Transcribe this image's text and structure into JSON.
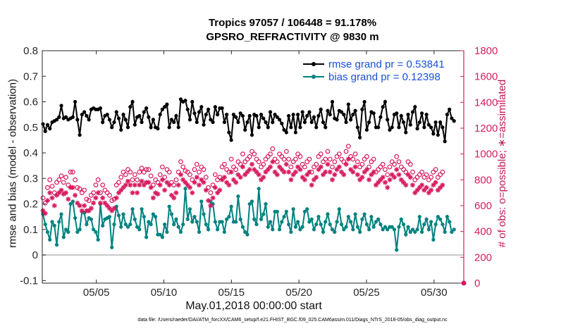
{
  "header": {
    "title_line1": "Tropics 97057 / 106448 = 91.178%",
    "title_line2": "GPSRO_REFRACTIVITY @ 9830 m"
  },
  "axes": {
    "xlabel": "May.01,2018 00:00:00 start",
    "ylabel_left": "rmse and bias (model - observation)",
    "ylabel_right": "# of obs: o=possible; ∗=assimilated"
  },
  "footnote": "data file: /Users/raeder/DAI/ATM_forcXX/CAM6_setup/f.e21.FHIST_BGC.f09_025.CAM6assim.011/Diags_NTrS_2018-05/obs_diag_output.nc",
  "colors": {
    "rmse": "#000000",
    "bias": "#00827f",
    "obs": "#d81b60",
    "legend_text": "#1a4fd6",
    "zero_line": "#b0b0b0"
  },
  "chart_data": {
    "type": "line",
    "title": "Tropics 97057 / 106448 = 91.178%",
    "subtitle": "GPSRO_REFRACTIVITY @ 9830 m",
    "xlabel": "May.01,2018 00:00:00 start",
    "ylabel": "rmse and bias (model - observation)",
    "y2label": "# of obs: o=possible; ∗=assimilated",
    "xlim": [
      1,
      32.2
    ],
    "ylim": [
      -0.11,
      0.8
    ],
    "y2lim": [
      0,
      1800
    ],
    "x_ticks": [
      5,
      10,
      15,
      20,
      25,
      30
    ],
    "x_tick_labels": [
      "05/05",
      "05/10",
      "05/15",
      "05/20",
      "05/25",
      "05/30"
    ],
    "y_ticks": [
      -0.1,
      0,
      0.1,
      0.2,
      0.3,
      0.4,
      0.5,
      0.6,
      0.7,
      0.8
    ],
    "y_tick_labels": [
      "-0.1",
      "0",
      "0.1",
      "0.2",
      "0.3",
      "0.4",
      "0.5",
      "0.6",
      "0.7",
      "0.8"
    ],
    "y2_ticks": [
      0,
      200,
      400,
      600,
      800,
      1000,
      1200,
      1400,
      1600,
      1800
    ],
    "y2_tick_labels": [
      "0",
      "200",
      "400",
      "600",
      "800",
      "1000",
      "1200",
      "1400",
      "1600",
      "1800"
    ],
    "legend_position": "top-right",
    "grid": false,
    "series": [
      {
        "name": "rmse grand pr = 0.53841",
        "axis": "left",
        "style": "line-filled-circle",
        "values": [
          0.513,
          0.485,
          0.51,
          0.495,
          0.52,
          0.525,
          0.53,
          0.54,
          0.585,
          0.535,
          0.54,
          0.53,
          0.535,
          0.54,
          0.6,
          0.53,
          0.47,
          0.55,
          0.56,
          0.545,
          0.53,
          0.57,
          0.575,
          0.57,
          0.57,
          0.575,
          0.52,
          0.545,
          0.55,
          0.53,
          0.5,
          0.52,
          0.56,
          0.535,
          0.49,
          0.55,
          0.53,
          0.5,
          0.58,
          0.6,
          0.51,
          0.54,
          0.545,
          0.52,
          0.56,
          0.575,
          0.54,
          0.5,
          0.53,
          0.5,
          0.495,
          0.55,
          0.57,
          0.58,
          0.59,
          0.5,
          0.53,
          0.52,
          0.545,
          0.5,
          0.61,
          0.6,
          0.605,
          0.57,
          0.53,
          0.6,
          0.555,
          0.52,
          0.56,
          0.58,
          0.51,
          0.55,
          0.57,
          0.53,
          0.52,
          0.58,
          0.55,
          0.575,
          0.575,
          0.52,
          0.55,
          0.48,
          0.45,
          0.55,
          0.54,
          0.52,
          0.555,
          0.545,
          0.49,
          0.52,
          0.545,
          0.47,
          0.55,
          0.545,
          0.5,
          0.55,
          0.535,
          0.52,
          0.5,
          0.56,
          0.52,
          0.55,
          0.54,
          0.53,
          0.515,
          0.49,
          0.48,
          0.545,
          0.5,
          0.55,
          0.48,
          0.55,
          0.5,
          0.56,
          0.52,
          0.545,
          0.56,
          0.52,
          0.54,
          0.5,
          0.545,
          0.57,
          0.52,
          0.5,
          0.565,
          0.55,
          0.6,
          0.535,
          0.53,
          0.565,
          0.56,
          0.55,
          0.52,
          0.59,
          0.53,
          0.55,
          0.565,
          0.5,
          0.46,
          0.57,
          0.6,
          0.49,
          0.52,
          0.56,
          0.555,
          0.5,
          0.5,
          0.54,
          0.58,
          0.6,
          0.53,
          0.49,
          0.5,
          0.55,
          0.555,
          0.5,
          0.545,
          0.52,
          0.48,
          0.55,
          0.51,
          0.56,
          0.58,
          0.495,
          0.52,
          0.555,
          0.5,
          0.55,
          0.51,
          0.5,
          0.475,
          0.52,
          0.47,
          0.52,
          0.5,
          0.445,
          0.55,
          0.57,
          0.535,
          0.525
        ]
      },
      {
        "name": "bias grand pr = 0.12398",
        "axis": "left",
        "style": "line-filled-circle",
        "values": [
          0.16,
          0.12,
          0.09,
          0.06,
          0.13,
          0.115,
          0.04,
          0.13,
          0.16,
          0.07,
          0.1,
          0.09,
          0.2,
          0.21,
          0.145,
          0.09,
          0.1,
          0.17,
          0.165,
          0.12,
          0.145,
          0.14,
          0.1,
          0.09,
          0.06,
          0.2,
          0.115,
          0.14,
          0.145,
          0.15,
          0.03,
          0.12,
          0.19,
          0.155,
          0.11,
          0.16,
          0.12,
          0.11,
          0.12,
          0.18,
          0.14,
          0.11,
          0.1,
          0.18,
          0.15,
          0.07,
          0.13,
          0.12,
          0.16,
          0.15,
          0.08,
          0.08,
          0.07,
          0.12,
          0.09,
          0.19,
          0.16,
          0.12,
          0.14,
          0.11,
          0.09,
          0.12,
          0.26,
          0.14,
          0.18,
          0.13,
          0.15,
          0.13,
          0.09,
          0.21,
          0.16,
          0.12,
          0.1,
          0.21,
          0.2,
          0.13,
          0.1,
          0.13,
          0.13,
          0.09,
          0.14,
          0.15,
          0.19,
          0.13,
          0.13,
          0.23,
          0.14,
          0.11,
          0.09,
          0.08,
          0.2,
          0.21,
          0.14,
          0.12,
          0.26,
          0.14,
          0.16,
          0.2,
          0.11,
          0.13,
          0.1,
          0.17,
          0.17,
          0.1,
          0.13,
          0.15,
          0.17,
          0.12,
          0.09,
          0.18,
          0.11,
          0.13,
          0.1,
          0.11,
          0.17,
          0.18,
          0.13,
          0.14,
          0.1,
          0.12,
          0.15,
          0.12,
          0.09,
          0.13,
          0.16,
          0.12,
          0.1,
          0.09,
          0.13,
          0.18,
          0.12,
          0.1,
          0.11,
          0.15,
          0.13,
          0.1,
          0.16,
          0.11,
          0.09,
          0.14,
          0.16,
          0.12,
          0.1,
          0.15,
          0.11,
          0.13,
          0.14,
          0.12,
          0.1,
          0.11,
          0.1,
          0.11,
          0.11,
          0.1,
          0.02,
          0.11,
          0.14,
          0.12,
          0.08,
          0.11,
          0.09,
          0.1,
          0.09,
          0.1,
          0.15,
          0.09,
          0.12,
          0.14,
          0.1,
          0.13,
          0.06,
          0.12,
          0.15,
          0.14,
          0.12,
          0.09,
          0.15,
          0.13,
          0.09,
          0.1
        ]
      },
      {
        "name": "possible",
        "axis": "right",
        "style": "open-circle",
        "values": [
          660,
          620,
          740,
          800,
          750,
          700,
          780,
          800,
          830,
          780,
          820,
          760,
          860,
          860,
          800,
          740,
          730,
          700,
          720,
          650,
          640,
          680,
          700,
          760,
          800,
          700,
          760,
          720,
          700,
          680,
          640,
          650,
          760,
          780,
          820,
          860,
          840,
          880,
          860,
          800,
          840,
          800,
          860,
          890,
          860,
          880,
          880,
          830,
          760,
          800,
          780,
          840,
          900,
          820,
          880,
          860,
          780,
          760,
          800,
          860,
          940,
          900,
          870,
          860,
          840,
          800,
          880,
          920,
          860,
          900,
          880,
          820,
          740,
          700,
          760,
          840,
          800,
          820,
          900,
          920,
          880,
          860,
          960,
          900,
          880,
          940,
          920,
          1000,
          940,
          960,
          980,
          1020,
          1000,
          960,
          940,
          900,
          920,
          960,
          980,
          1000,
          1040,
          960,
          940,
          1000,
          980,
          960,
          1020,
          960,
          900,
          940,
          960,
          1000,
          980,
          920,
          900,
          940,
          960,
          860,
          900,
          920,
          980,
          1000,
          940,
          960,
          1020,
          960,
          900,
          940,
          980,
          1000,
          960,
          940,
          1020,
          1060,
          980,
          960,
          1000,
          940,
          900,
          920,
          960,
          980,
          900,
          940,
          960,
          860,
          880,
          900,
          920,
          880,
          840,
          900,
          940,
          920,
          980,
          940,
          900,
          880,
          860,
          940,
          920,
          860,
          800,
          820,
          840,
          860,
          820,
          840,
          800,
          820,
          860,
          880,
          820,
          840,
          860
        ]
      },
      {
        "name": "assimilated",
        "axis": "right",
        "style": "asterisk",
        "values": [
          560,
          540,
          640,
          700,
          660,
          600,
          680,
          700,
          720,
          690,
          700,
          650,
          740,
          740,
          680,
          620,
          600,
          560,
          600,
          560,
          560,
          580,
          620,
          660,
          700,
          620,
          660,
          620,
          600,
          580,
          560,
          580,
          660,
          700,
          720,
          740,
          760,
          790,
          760,
          700,
          760,
          700,
          760,
          790,
          760,
          780,
          780,
          740,
          660,
          700,
          690,
          760,
          800,
          720,
          780,
          760,
          680,
          660,
          700,
          760,
          840,
          800,
          780,
          760,
          740,
          700,
          780,
          820,
          760,
          800,
          780,
          720,
          640,
          600,
          660,
          740,
          700,
          720,
          800,
          820,
          780,
          760,
          860,
          800,
          780,
          840,
          820,
          900,
          840,
          860,
          880,
          920,
          880,
          860,
          840,
          800,
          820,
          860,
          880,
          900,
          940,
          860,
          840,
          900,
          880,
          860,
          920,
          860,
          800,
          840,
          860,
          900,
          880,
          820,
          800,
          840,
          860,
          760,
          800,
          820,
          880,
          900,
          840,
          860,
          920,
          860,
          800,
          840,
          880,
          900,
          860,
          840,
          920,
          960,
          880,
          860,
          900,
          840,
          800,
          820,
          860,
          880,
          800,
          840,
          860,
          760,
          780,
          800,
          820,
          780,
          740,
          800,
          840,
          820,
          880,
          840,
          800,
          780,
          760,
          840,
          820,
          760,
          700,
          720,
          740,
          760,
          720,
          740,
          700,
          720,
          760,
          780,
          720,
          740,
          760
        ]
      }
    ]
  }
}
